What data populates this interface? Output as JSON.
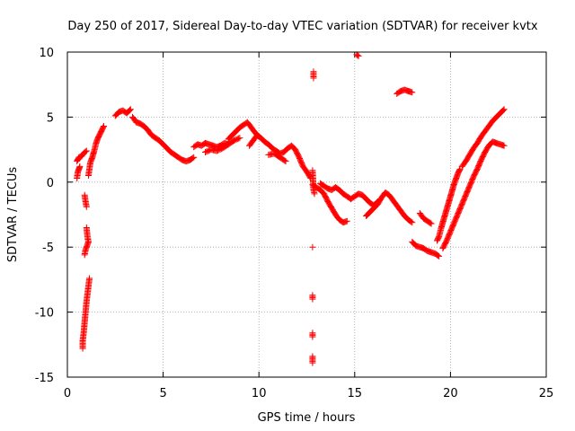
{
  "chart_data": {
    "type": "scatter",
    "title": "Day 250 of 2017, Sidereal Day-to-day VTEC variation (SDTVAR) for receiver kvtx",
    "xlabel": "GPS time / hours",
    "ylabel": "SDTVAR / TECUs",
    "xlim": [
      0,
      25
    ],
    "ylim": [
      -15,
      10
    ],
    "xticks": [
      0,
      5,
      10,
      15,
      20,
      25
    ],
    "yticks": [
      -15,
      -10,
      -5,
      0,
      5,
      10
    ],
    "grid": true,
    "marker": "plus",
    "color": "#ff0000",
    "series": [
      {
        "name": "SDTVAR",
        "segments": [
          [
            [
              0.5,
              1.6
            ],
            [
              0.6,
              1.9
            ],
            [
              0.75,
              2.0
            ],
            [
              0.9,
              2.3
            ],
            [
              1.0,
              2.4
            ]
          ],
          [
            [
              0.5,
              0.3
            ],
            [
              0.55,
              0.8
            ],
            [
              0.6,
              1.0
            ],
            [
              0.65,
              1.2
            ]
          ],
          [
            [
              1.1,
              0.5
            ],
            [
              1.15,
              1.0
            ],
            [
              1.2,
              1.5
            ],
            [
              1.3,
              1.9
            ],
            [
              1.4,
              2.4
            ],
            [
              1.5,
              3.0
            ],
            [
              1.6,
              3.4
            ],
            [
              1.7,
              3.7
            ],
            [
              1.8,
              4.0
            ],
            [
              1.9,
              4.3
            ]
          ],
          [
            [
              2.5,
              5.1
            ],
            [
              2.7,
              5.4
            ],
            [
              2.9,
              5.5
            ],
            [
              3.1,
              5.3
            ],
            [
              3.3,
              5.6
            ]
          ],
          [
            [
              3.4,
              5.0
            ],
            [
              3.6,
              4.6
            ],
            [
              3.8,
              4.5
            ],
            [
              4.0,
              4.3
            ],
            [
              4.2,
              4.0
            ],
            [
              4.4,
              3.6
            ],
            [
              4.6,
              3.4
            ],
            [
              4.8,
              3.2
            ],
            [
              5.0,
              2.9
            ],
            [
              5.2,
              2.6
            ],
            [
              5.4,
              2.3
            ],
            [
              5.6,
              2.1
            ],
            [
              5.8,
              1.9
            ],
            [
              6.0,
              1.7
            ],
            [
              6.2,
              1.6
            ],
            [
              6.4,
              1.7
            ],
            [
              6.6,
              1.9
            ]
          ],
          [
            [
              6.6,
              2.7
            ],
            [
              6.8,
              2.9
            ],
            [
              7.0,
              2.8
            ],
            [
              7.2,
              3.0
            ],
            [
              7.4,
              2.9
            ],
            [
              7.6,
              2.8
            ],
            [
              7.8,
              2.7
            ],
            [
              8.0,
              2.8
            ],
            [
              8.2,
              3.0
            ],
            [
              8.4,
              2.9
            ]
          ],
          [
            [
              8.4,
              3.3
            ],
            [
              8.6,
              3.6
            ],
            [
              8.8,
              3.9
            ],
            [
              9.0,
              4.2
            ],
            [
              9.2,
              4.4
            ],
            [
              9.4,
              4.6
            ],
            [
              9.6,
              4.2
            ],
            [
              9.8,
              3.8
            ],
            [
              10.0,
              3.5
            ]
          ],
          [
            [
              7.2,
              2.3
            ],
            [
              7.5,
              2.5
            ],
            [
              7.8,
              2.4
            ],
            [
              8.1,
              2.6
            ],
            [
              8.4,
              2.9
            ],
            [
              8.7,
              3.2
            ],
            [
              9.0,
              3.4
            ]
          ],
          [
            [
              9.5,
              2.8
            ],
            [
              9.7,
              3.2
            ],
            [
              9.9,
              3.6
            ],
            [
              10.1,
              3.4
            ],
            [
              10.3,
              3.1
            ],
            [
              10.5,
              2.9
            ],
            [
              10.7,
              2.6
            ],
            [
              10.9,
              2.4
            ],
            [
              11.1,
              2.2
            ],
            [
              11.3,
              2.3
            ],
            [
              11.5,
              2.6
            ],
            [
              11.7,
              2.8
            ],
            [
              11.9,
              2.5
            ],
            [
              12.1,
              1.9
            ],
            [
              12.3,
              1.2
            ],
            [
              12.5,
              0.8
            ],
            [
              12.7,
              0.3
            ]
          ],
          [
            [
              10.5,
              2.1
            ],
            [
              10.8,
              2.2
            ],
            [
              11.1,
              1.9
            ],
            [
              11.4,
              1.6
            ]
          ],
          [
            [
              12.8,
              -0.2
            ],
            [
              13.0,
              -0.4
            ],
            [
              13.2,
              -0.6
            ],
            [
              13.4,
              -0.9
            ],
            [
              13.6,
              -1.5
            ],
            [
              13.8,
              -2.0
            ],
            [
              14.0,
              -2.5
            ],
            [
              14.2,
              -2.9
            ],
            [
              14.4,
              -3.1
            ],
            [
              14.6,
              -3.0
            ]
          ],
          [
            [
              13.2,
              -0.1
            ],
            [
              13.4,
              -0.3
            ],
            [
              13.6,
              -0.5
            ],
            [
              13.8,
              -0.6
            ],
            [
              14.0,
              -0.4
            ],
            [
              14.2,
              -0.6
            ],
            [
              14.4,
              -0.9
            ],
            [
              14.6,
              -1.1
            ],
            [
              14.8,
              -1.3
            ],
            [
              15.0,
              -1.1
            ],
            [
              15.2,
              -0.9
            ],
            [
              15.4,
              -1.0
            ],
            [
              15.6,
              -1.3
            ],
            [
              15.8,
              -1.6
            ],
            [
              16.0,
              -1.8
            ],
            [
              16.2,
              -1.5
            ]
          ],
          [
            [
              15.6,
              -2.6
            ],
            [
              15.8,
              -2.3
            ],
            [
              16.0,
              -2.0
            ],
            [
              16.2,
              -1.7
            ],
            [
              16.4,
              -1.2
            ],
            [
              16.6,
              -0.8
            ],
            [
              16.8,
              -1.0
            ],
            [
              17.0,
              -1.4
            ],
            [
              17.2,
              -1.8
            ],
            [
              17.4,
              -2.2
            ],
            [
              17.6,
              -2.6
            ],
            [
              17.8,
              -2.9
            ],
            [
              18.0,
              -3.1
            ]
          ],
          [
            [
              18.4,
              -2.4
            ],
            [
              18.6,
              -2.8
            ],
            [
              18.8,
              -3.0
            ],
            [
              19.0,
              -3.2
            ]
          ],
          [
            [
              18.0,
              -4.6
            ],
            [
              18.2,
              -4.9
            ],
            [
              18.4,
              -5.0
            ],
            [
              18.6,
              -5.1
            ],
            [
              18.8,
              -5.3
            ],
            [
              19.0,
              -5.4
            ],
            [
              19.2,
              -5.5
            ],
            [
              19.4,
              -5.7
            ]
          ],
          [
            [
              19.3,
              -4.5
            ],
            [
              19.4,
              -4.2
            ],
            [
              19.5,
              -3.6
            ],
            [
              19.6,
              -3.1
            ],
            [
              19.7,
              -2.6
            ],
            [
              19.8,
              -2.1
            ],
            [
              19.9,
              -1.6
            ],
            [
              20.0,
              -1.1
            ],
            [
              20.1,
              -0.6
            ],
            [
              20.2,
              -0.1
            ],
            [
              20.3,
              0.3
            ],
            [
              20.4,
              0.7
            ],
            [
              20.5,
              1.0
            ]
          ],
          [
            [
              19.6,
              -5.1
            ],
            [
              19.8,
              -4.5
            ],
            [
              20.0,
              -3.8
            ],
            [
              20.2,
              -3.1
            ],
            [
              20.4,
              -2.4
            ],
            [
              20.6,
              -1.7
            ],
            [
              20.8,
              -1.0
            ],
            [
              21.0,
              -0.3
            ],
            [
              21.2,
              0.4
            ],
            [
              21.4,
              1.0
            ],
            [
              21.6,
              1.7
            ],
            [
              21.8,
              2.3
            ],
            [
              22.0,
              2.8
            ],
            [
              22.2,
              3.1
            ],
            [
              22.4,
              3.0
            ],
            [
              22.6,
              2.9
            ],
            [
              22.8,
              2.8
            ]
          ],
          [
            [
              20.6,
              1.2
            ],
            [
              20.8,
              1.6
            ],
            [
              21.0,
              2.1
            ],
            [
              21.2,
              2.6
            ],
            [
              21.4,
              3.0
            ],
            [
              21.6,
              3.5
            ],
            [
              21.8,
              3.9
            ],
            [
              22.0,
              4.3
            ],
            [
              22.2,
              4.7
            ],
            [
              22.4,
              5.0
            ],
            [
              22.6,
              5.3
            ],
            [
              22.8,
              5.6
            ]
          ],
          [
            [
              17.2,
              6.8
            ],
            [
              17.4,
              7.0
            ],
            [
              17.6,
              7.1
            ],
            [
              17.8,
              7.0
            ],
            [
              18.0,
              6.9
            ]
          ],
          [
            [
              15.1,
              9.8
            ],
            [
              15.2,
              9.7
            ]
          ],
          [
            [
              12.85,
              8.5
            ],
            [
              12.85,
              8.3
            ],
            [
              12.85,
              8.0
            ]
          ],
          [
            [
              12.8,
              -5.0
            ]
          ],
          [
            [
              12.8,
              -8.7
            ],
            [
              12.8,
              -9.0
            ]
          ],
          [
            [
              12.8,
              -11.6
            ],
            [
              12.8,
              -11.9
            ]
          ],
          [
            [
              12.8,
              -13.4
            ],
            [
              12.8,
              -13.9
            ]
          ],
          [
            [
              12.8,
              0.9
            ],
            [
              12.85,
              -0.6
            ],
            [
              12.9,
              -0.9
            ]
          ],
          [
            [
              0.9,
              -1.0
            ],
            [
              0.95,
              -1.5
            ],
            [
              1.0,
              -1.9
            ]
          ],
          [
            [
              1.0,
              -3.5
            ],
            [
              1.05,
              -4.2
            ],
            [
              1.1,
              -4.6
            ],
            [
              0.95,
              -5.2
            ],
            [
              0.9,
              -5.6
            ]
          ],
          [
            [
              1.15,
              -7.4
            ],
            [
              1.1,
              -8.0
            ],
            [
              1.05,
              -8.6
            ],
            [
              1.0,
              -9.2
            ],
            [
              0.95,
              -10.0
            ],
            [
              0.9,
              -10.8
            ],
            [
              0.85,
              -11.6
            ],
            [
              0.8,
              -12.2
            ],
            [
              0.8,
              -12.8
            ]
          ]
        ]
      }
    ]
  }
}
